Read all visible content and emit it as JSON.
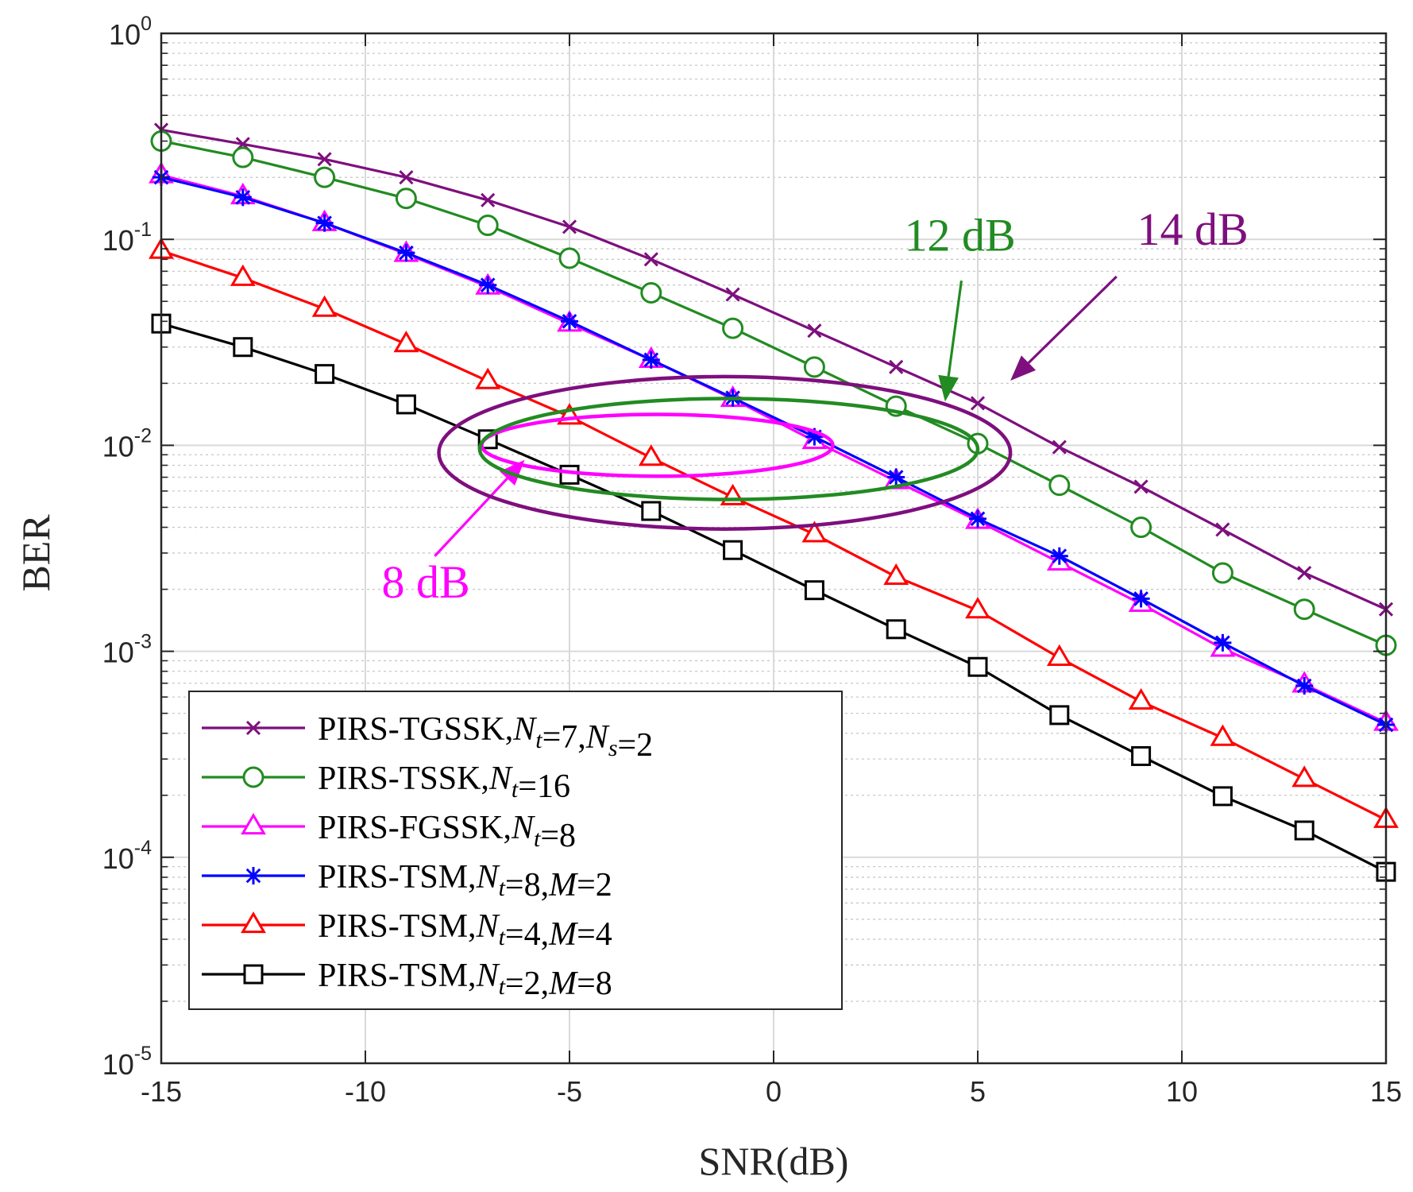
{
  "chart_data": {
    "type": "line",
    "title": "",
    "xlabel": "SNR(dB)",
    "ylabel": "BER",
    "x": [
      -15,
      -13,
      -11,
      -9,
      -7,
      -5,
      -3,
      -1,
      1,
      3,
      5,
      7,
      9,
      11,
      13,
      15
    ],
    "xlim": [
      -15,
      15
    ],
    "xticks": [
      -15,
      -10,
      -5,
      0,
      5,
      10,
      15
    ],
    "xtick_labels": [
      "-15",
      "-10",
      "-5",
      "0",
      "5",
      "10",
      "15"
    ],
    "ylim": [
      1e-05,
      1
    ],
    "yscale": "log",
    "ytick_base": "10",
    "ytick_exponents": [
      "0",
      "-1",
      "-2",
      "-3",
      "-4",
      "-5"
    ],
    "grid": true,
    "legend_position": "bottom-left",
    "series": [
      {
        "name": "PIRS-TGSSK",
        "legend_parts": [
          {
            "t": "PIRS-TGSSK,"
          },
          {
            "t": "N",
            "i": true
          },
          {
            "t": "t",
            "sub": true
          },
          {
            "t": "=7,"
          },
          {
            "t": "N",
            "i": true
          },
          {
            "t": "s",
            "sub": true
          },
          {
            "t": "=2"
          }
        ],
        "color": "#7E0F7E",
        "marker": "x",
        "values": [
          0.34,
          0.29,
          0.245,
          0.2,
          0.155,
          0.115,
          0.08,
          0.054,
          0.036,
          0.024,
          0.016,
          0.0098,
          0.0063,
          0.0039,
          0.0024,
          0.0016
        ]
      },
      {
        "name": "PIRS-TSSK",
        "legend_parts": [
          {
            "t": "PIRS-TSSK,"
          },
          {
            "t": "N",
            "i": true
          },
          {
            "t": "t",
            "sub": true
          },
          {
            "t": "=16"
          }
        ],
        "color": "#228B22",
        "marker": "circle",
        "values": [
          0.3,
          0.25,
          0.2,
          0.158,
          0.117,
          0.081,
          0.055,
          0.037,
          0.024,
          0.0155,
          0.0102,
          0.0064,
          0.004,
          0.0024,
          0.0016,
          0.00107
        ]
      },
      {
        "name": "PIRS-FGSSK",
        "legend_parts": [
          {
            "t": "PIRS-FGSSK,"
          },
          {
            "t": "N",
            "i": true
          },
          {
            "t": "t",
            "sub": true
          },
          {
            "t": "=8"
          }
        ],
        "color": "#FF00FF",
        "marker": "triangle",
        "values": [
          0.205,
          0.162,
          0.12,
          0.085,
          0.059,
          0.039,
          0.026,
          0.0168,
          0.0105,
          0.0067,
          0.0043,
          0.0027,
          0.0017,
          0.00103,
          0.00069,
          0.00045
        ]
      },
      {
        "name": "PIRS-TSM, M=2",
        "legend_parts": [
          {
            "t": "PIRS-TSM,"
          },
          {
            "t": "N",
            "i": true
          },
          {
            "t": "t",
            "sub": true
          },
          {
            "t": "=8,"
          },
          {
            "t": "M",
            "i": true
          },
          {
            "t": "=2"
          }
        ],
        "color": "#0000FF",
        "marker": "star",
        "values": [
          0.2,
          0.16,
          0.12,
          0.086,
          0.06,
          0.04,
          0.026,
          0.017,
          0.011,
          0.007,
          0.0044,
          0.0029,
          0.0018,
          0.0011,
          0.00068,
          0.00044
        ]
      },
      {
        "name": "PIRS-TSM, M=4",
        "legend_parts": [
          {
            "t": "PIRS-TSM,"
          },
          {
            "t": "N",
            "i": true
          },
          {
            "t": "t",
            "sub": true
          },
          {
            "t": "=4,"
          },
          {
            "t": "M",
            "i": true
          },
          {
            "t": "=4"
          }
        ],
        "color": "#FF0000",
        "marker": "triangle",
        "values": [
          0.088,
          0.065,
          0.046,
          0.031,
          0.0205,
          0.0138,
          0.0087,
          0.0056,
          0.0037,
          0.0023,
          0.00158,
          0.00093,
          0.00057,
          0.00038,
          0.00024,
          0.000152
        ]
      },
      {
        "name": "PIRS-TSM, M=8",
        "legend_parts": [
          {
            "t": "PIRS-TSM,"
          },
          {
            "t": "N",
            "i": true
          },
          {
            "t": "t",
            "sub": true
          },
          {
            "t": "=2,"
          },
          {
            "t": "M",
            "i": true
          },
          {
            "t": "=8"
          }
        ],
        "color": "#000000",
        "marker": "square",
        "values": [
          0.039,
          0.03,
          0.0222,
          0.0158,
          0.0107,
          0.0072,
          0.0048,
          0.0031,
          0.00198,
          0.00128,
          0.00084,
          0.00049,
          0.00031,
          0.000198,
          0.000135,
          8.5e-05
        ]
      }
    ],
    "annotations": [
      {
        "text": "8 dB",
        "color": "#FF00FF",
        "label_at": [
          -9.6,
          0.00182
        ],
        "arrow_from": [
          -8.3,
          0.0029
        ],
        "arrow_to": [
          -6.1,
          0.0085
        ],
        "ellipse_center": [
          -2.85,
          0.01
        ],
        "ellipse_x_half": 4.3,
        "ellipse_log_half": 0.15
      },
      {
        "text": "12 dB",
        "color": "#228B22",
        "label_at": [
          3.2,
          0.088
        ],
        "arrow_from": [
          4.6,
          0.063
        ],
        "arrow_to": [
          4.2,
          0.0163
        ],
        "ellipse_center": [
          -1.1,
          0.0096
        ],
        "ellipse_x_half": 6.1,
        "ellipse_log_half": 0.245
      },
      {
        "text": "14 dB",
        "color": "#7E0F7E",
        "label_at": [
          8.9,
          0.094
        ],
        "arrow_from": [
          8.4,
          0.066
        ],
        "arrow_to": [
          5.8,
          0.0206
        ],
        "ellipse_center": [
          -1.2,
          0.0092
        ],
        "ellipse_x_half": 7.0,
        "ellipse_log_half": 0.37
      }
    ]
  }
}
